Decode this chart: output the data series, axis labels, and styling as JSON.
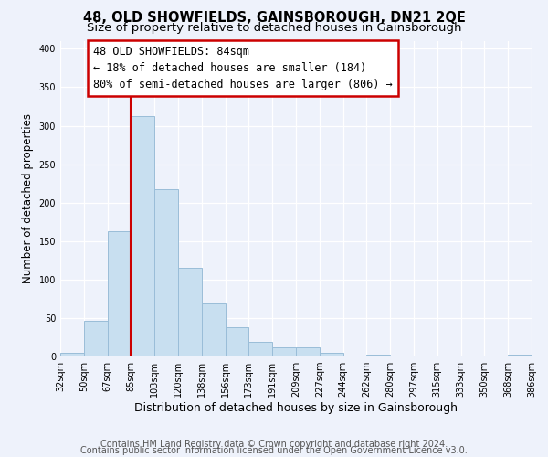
{
  "title": "48, OLD SHOWFIELDS, GAINSBOROUGH, DN21 2QE",
  "subtitle": "Size of property relative to detached houses in Gainsborough",
  "xlabel": "Distribution of detached houses by size in Gainsborough",
  "ylabel": "Number of detached properties",
  "bin_labels": [
    "32sqm",
    "50sqm",
    "67sqm",
    "85sqm",
    "103sqm",
    "120sqm",
    "138sqm",
    "156sqm",
    "173sqm",
    "191sqm",
    "209sqm",
    "227sqm",
    "244sqm",
    "262sqm",
    "280sqm",
    "297sqm",
    "315sqm",
    "333sqm",
    "350sqm",
    "368sqm",
    "386sqm"
  ],
  "bar_heights": [
    5,
    46,
    163,
    312,
    218,
    115,
    69,
    38,
    19,
    12,
    12,
    5,
    1,
    2,
    1,
    0,
    1,
    0,
    0,
    2
  ],
  "bar_color": "#c8dff0",
  "bar_edge_color": "#9abdd8",
  "vline_x": 3,
  "vline_color": "#cc0000",
  "annotation_line1": "48 OLD SHOWFIELDS: 84sqm",
  "annotation_line2": "← 18% of detached houses are smaller (184)",
  "annotation_line3": "80% of semi-detached houses are larger (806) →",
  "annotation_box_facecolor": "white",
  "annotation_box_edgecolor": "#cc0000",
  "ylim": [
    0,
    410
  ],
  "footer_line1": "Contains HM Land Registry data © Crown copyright and database right 2024.",
  "footer_line2": "Contains public sector information licensed under the Open Government Licence v3.0.",
  "background_color": "#eef2fb",
  "grid_color": "white",
  "title_fontsize": 10.5,
  "subtitle_fontsize": 9.5,
  "xlabel_fontsize": 9,
  "ylabel_fontsize": 8.5,
  "tick_fontsize": 7,
  "annotation_fontsize": 8.5,
  "footer_fontsize": 7
}
